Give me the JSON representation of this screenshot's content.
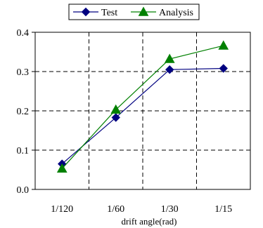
{
  "chart_data": {
    "type": "line",
    "title": "",
    "xlabel": "drift angle(rad)",
    "ylabel": "",
    "categories": [
      "1/120",
      "1/60",
      "1/30",
      "1/15"
    ],
    "ylim": [
      0.0,
      0.4
    ],
    "yticks": [
      "0.0",
      "0.1",
      "0.2",
      "0.3",
      "0.4"
    ],
    "grid": true,
    "grid_style": "dashed",
    "legend_position": "top",
    "series": [
      {
        "name": "Test",
        "values": [
          0.065,
          0.183,
          0.305,
          0.308
        ],
        "color": "#000080",
        "marker": "diamond"
      },
      {
        "name": "Analysis",
        "values": [
          0.053,
          0.203,
          0.332,
          0.366
        ],
        "color": "#008000",
        "marker": "triangle"
      }
    ]
  }
}
